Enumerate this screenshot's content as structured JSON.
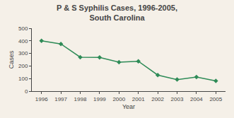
{
  "chart_data": {
    "type": "line",
    "title": "P & S Syphilis Cases, 1996-2005,\nSouth Carolina",
    "xlabel": "Year",
    "ylabel": "Cases",
    "x": [
      1996,
      1997,
      1998,
      1999,
      2000,
      2001,
      2002,
      2003,
      2004,
      2005
    ],
    "values": [
      400,
      375,
      270,
      268,
      230,
      238,
      128,
      92,
      112,
      82
    ],
    "color": "#2e8b57",
    "marker": "diamond",
    "line_style": "solid",
    "xlim": [
      1995.5,
      2005.5
    ],
    "xticks": [
      1996,
      1997,
      1998,
      1999,
      2000,
      2001,
      2002,
      2003,
      2004,
      2005
    ],
    "ylim": [
      0,
      500
    ],
    "yticks": [
      0,
      100,
      200,
      300,
      400,
      500
    ],
    "grid": false
  }
}
